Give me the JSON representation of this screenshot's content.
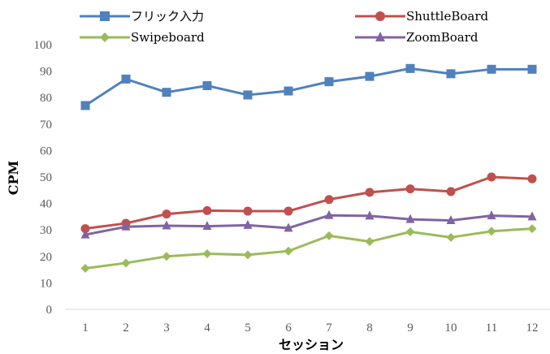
{
  "chart_data": {
    "type": "line",
    "title": "",
    "xlabel": "セッション",
    "ylabel": "CPM",
    "ylim": [
      0,
      100
    ],
    "yticks": [
      "0",
      "10",
      "20",
      "30",
      "40",
      "50",
      "60",
      "70",
      "80",
      "90",
      "100"
    ],
    "categories": [
      "1",
      "2",
      "3",
      "4",
      "5",
      "6",
      "7",
      "8",
      "9",
      "10",
      "11",
      "12"
    ],
    "grid": false,
    "legend_position": "top",
    "series": [
      {
        "name": "フリック入力",
        "color": "#4F81BD",
        "marker": "square",
        "values": [
          77,
          87,
          82,
          84.5,
          81,
          82.5,
          86,
          88,
          91,
          89,
          90.7,
          90.7
        ]
      },
      {
        "name": "ShuttleBoard",
        "color": "#C0504D",
        "marker": "circle",
        "values": [
          30.5,
          32.5,
          36,
          37.3,
          37.1,
          37.1,
          41.5,
          44.2,
          45.5,
          44.5,
          50,
          49.3
        ]
      },
      {
        "name": "Swipeboard",
        "color": "#9BBB59",
        "marker": "diamond",
        "values": [
          15.5,
          17.5,
          20,
          21,
          20.6,
          22,
          27.8,
          25.6,
          29.3,
          27.2,
          29.5,
          30.5
        ]
      },
      {
        "name": "ZoomBoard",
        "color": "#8064A2",
        "marker": "triangle",
        "values": [
          28.2,
          31.2,
          31.6,
          31.4,
          31.8,
          30.7,
          35.5,
          35.3,
          34,
          33.6,
          35.4,
          35
        ]
      }
    ]
  }
}
